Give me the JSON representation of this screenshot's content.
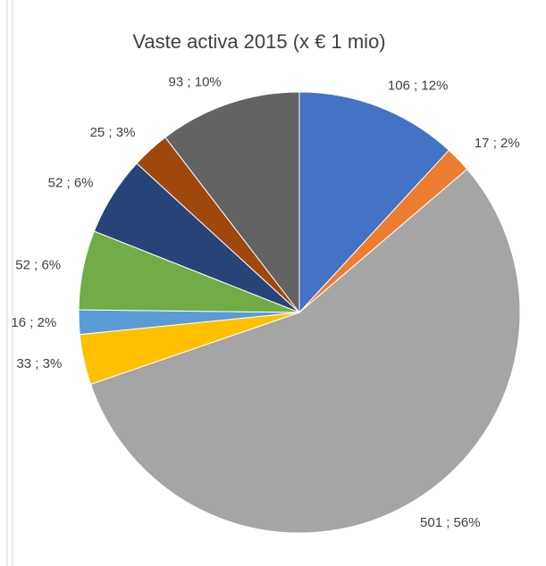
{
  "chart_data": {
    "type": "pie",
    "title": "Vaste activa 2015 (x € 1 mio)",
    "values": [
      106,
      17,
      501,
      33,
      16,
      52,
      52,
      25,
      93
    ],
    "value_labels": [
      "106 ; 12%",
      "17 ; 2%",
      "501 ; 56%",
      "33 ; 3%",
      "16 ; 2%",
      "52 ; 6%",
      "52 ; 6%",
      "25 ; 3%",
      "93 ; 10%"
    ],
    "colors": [
      "#4472c4",
      "#ed7d31",
      "#a5a5a5",
      "#ffc000",
      "#5b9bd5",
      "#70ad47",
      "#264478",
      "#9e480e",
      "#636363"
    ]
  }
}
